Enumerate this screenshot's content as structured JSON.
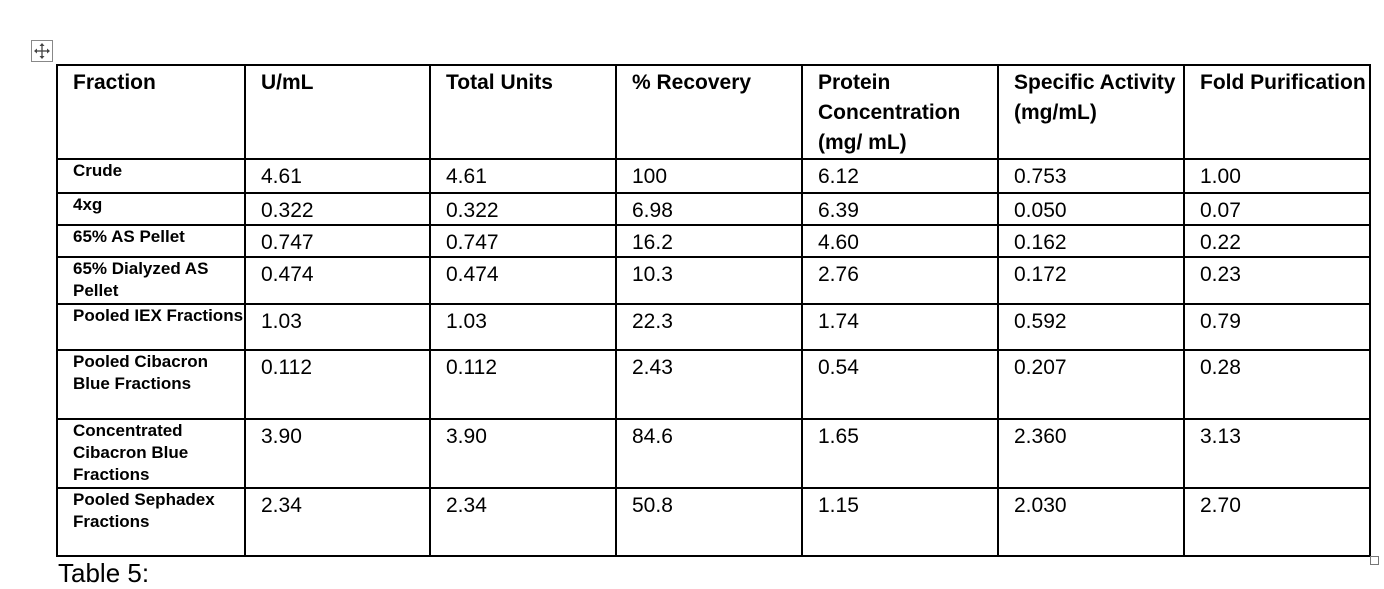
{
  "table": {
    "headers": [
      "Fraction",
      "U/mL",
      "Total Units",
      "% Recovery",
      "Protein Concentration (mg/ mL)",
      "Specific Activity (mg/mL)",
      "Fold Purification"
    ],
    "rows": [
      [
        "Crude",
        "4.61",
        "4.61",
        "100",
        "6.12",
        "0.753",
        "1.00"
      ],
      [
        "4xg",
        "0.322",
        "0.322",
        "6.98",
        "6.39",
        "0.050",
        "0.07"
      ],
      [
        "65% AS Pellet",
        "0.747",
        "0.747",
        "16.2",
        "4.60",
        "0.162",
        "0.22"
      ],
      [
        "65% Dialyzed AS Pellet",
        "0.474",
        "0.474",
        "10.3",
        "2.76",
        "0.172",
        "0.23"
      ],
      [
        "Pooled IEX Fractions",
        "1.03",
        "1.03",
        "22.3",
        "1.74",
        "0.592",
        "0.79"
      ],
      [
        "Pooled Cibacron Blue Fractions",
        "0.112",
        "0.112",
        "2.43",
        "0.54",
        "0.207",
        "0.28"
      ],
      [
        "Concentrated Cibacron Blue Fractions",
        "3.90",
        "3.90",
        "84.6",
        "1.65",
        "2.360",
        "3.13"
      ],
      [
        "Pooled Sephadex Fractions",
        "2.34",
        "2.34",
        "50.8",
        "1.15",
        "2.030",
        "2.70"
      ]
    ]
  },
  "caption": "Table 5:"
}
